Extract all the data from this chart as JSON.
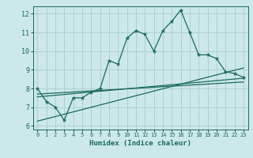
{
  "xlabel": "Humidex (Indice chaleur)",
  "bg_color": "#cce8e8",
  "grid_color": "#aacccc",
  "line_color": "#1a6b5a",
  "xlim": [
    -0.5,
    23.5
  ],
  "ylim": [
    5.8,
    12.4
  ],
  "xticks": [
    0,
    1,
    2,
    3,
    4,
    5,
    6,
    7,
    8,
    9,
    10,
    11,
    12,
    13,
    14,
    15,
    16,
    17,
    18,
    19,
    20,
    21,
    22,
    23
  ],
  "yticks": [
    6,
    7,
    8,
    9,
    10,
    11,
    12
  ],
  "main_x": [
    0,
    1,
    2,
    3,
    4,
    5,
    6,
    7,
    8,
    9,
    10,
    11,
    12,
    13,
    14,
    15,
    16,
    17,
    18,
    19,
    20,
    21,
    22,
    23
  ],
  "main_y": [
    8.0,
    7.3,
    7.0,
    6.3,
    7.5,
    7.5,
    7.8,
    8.0,
    9.5,
    9.3,
    10.7,
    11.1,
    10.9,
    10.0,
    11.1,
    11.6,
    12.2,
    11.0,
    9.8,
    9.8,
    9.6,
    8.9,
    8.8,
    8.6
  ],
  "line1_x": [
    0,
    23
  ],
  "line1_y": [
    7.55,
    8.55
  ],
  "line2_x": [
    0,
    23
  ],
  "line2_y": [
    6.25,
    9.1
  ],
  "line3_x": [
    0,
    23
  ],
  "line3_y": [
    7.7,
    8.35
  ]
}
